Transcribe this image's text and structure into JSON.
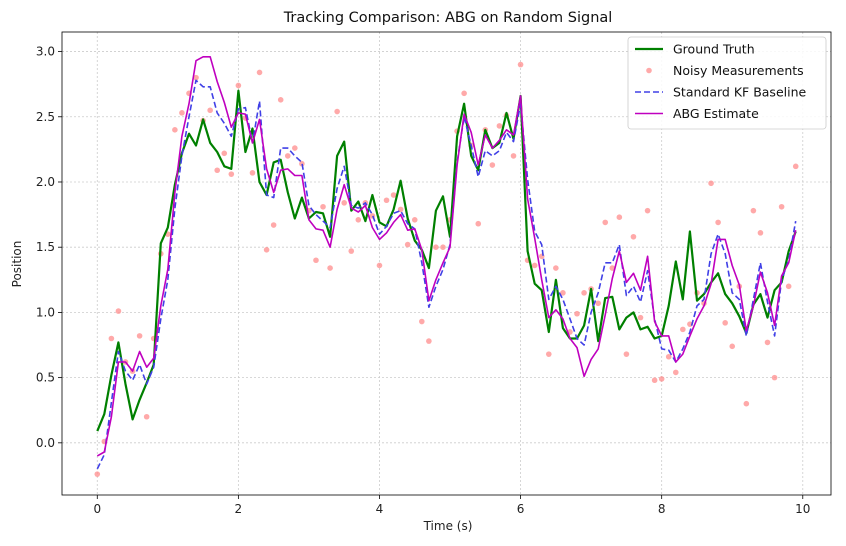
{
  "chart_data": {
    "type": "line",
    "title": "Tracking Comparison: ABG on Random Signal",
    "xlabel": "Time (s)",
    "ylabel": "Position",
    "xlim": [
      -0.5,
      10.4
    ],
    "ylim": [
      -0.4,
      3.15
    ],
    "xticks": [
      0,
      2,
      4,
      6,
      8,
      10
    ],
    "yticks": [
      0.0,
      0.5,
      1.0,
      1.5,
      2.0,
      2.5,
      3.0
    ],
    "xtick_labels": [
      "0",
      "2",
      "4",
      "6",
      "8",
      "10"
    ],
    "ytick_labels": [
      "0.0",
      "0.5",
      "1.0",
      "1.5",
      "2.0",
      "2.5",
      "3.0"
    ],
    "grid": true,
    "legend_position": "top-right",
    "series": [
      {
        "name": "Ground Truth",
        "kind": "line",
        "color": "#008000",
        "x": [
          0.0,
          0.1,
          0.2,
          0.3,
          0.4,
          0.5,
          0.6,
          0.7,
          0.8,
          0.9,
          1.0,
          1.1,
          1.2,
          1.3,
          1.4,
          1.5,
          1.6,
          1.7,
          1.8,
          1.9,
          2.0,
          2.1,
          2.2,
          2.3,
          2.4,
          2.5,
          2.6,
          2.7,
          2.8,
          2.9,
          3.0,
          3.1,
          3.2,
          3.3,
          3.4,
          3.5,
          3.6,
          3.7,
          3.8,
          3.9,
          4.0,
          4.1,
          4.2,
          4.3,
          4.4,
          4.5,
          4.6,
          4.7,
          4.8,
          4.9,
          5.0,
          5.1,
          5.2,
          5.3,
          5.4,
          5.5,
          5.6,
          5.7,
          5.8,
          5.9,
          6.0,
          6.1,
          6.2,
          6.3,
          6.4,
          6.5,
          6.6,
          6.7,
          6.8,
          6.9,
          7.0,
          7.1,
          7.2,
          7.3,
          7.4,
          7.5,
          7.6,
          7.7,
          7.8,
          7.9,
          8.0,
          8.1,
          8.2,
          8.3,
          8.4,
          8.5,
          8.6,
          8.7,
          8.8,
          8.9,
          9.0,
          9.1,
          9.2,
          9.3,
          9.4,
          9.5,
          9.6,
          9.7,
          9.8,
          9.9
        ],
        "y": [
          0.09,
          0.22,
          0.52,
          0.77,
          0.45,
          0.18,
          0.33,
          0.46,
          0.6,
          1.53,
          1.65,
          1.98,
          2.22,
          2.37,
          2.28,
          2.48,
          2.3,
          2.23,
          2.12,
          2.1,
          2.7,
          2.23,
          2.41,
          2.0,
          1.9,
          2.15,
          2.17,
          1.92,
          1.72,
          1.88,
          1.72,
          1.77,
          1.76,
          1.58,
          2.2,
          2.31,
          1.78,
          1.85,
          1.7,
          1.9,
          1.69,
          1.66,
          1.79,
          2.01,
          1.72,
          1.55,
          1.48,
          1.34,
          1.78,
          1.89,
          1.58,
          2.35,
          2.6,
          2.2,
          2.09,
          2.4,
          2.26,
          2.3,
          2.53,
          2.33,
          2.66,
          1.47,
          1.22,
          1.17,
          0.85,
          1.25,
          0.88,
          0.8,
          0.8,
          0.9,
          1.18,
          0.78,
          1.11,
          1.12,
          0.87,
          0.96,
          1.0,
          0.87,
          0.89,
          0.8,
          0.82,
          1.05,
          1.39,
          1.1,
          1.62,
          1.09,
          1.14,
          1.23,
          1.3,
          1.14,
          1.07,
          0.97,
          0.84,
          1.06,
          1.14,
          0.96,
          1.17,
          1.23,
          1.47,
          1.62
        ]
      },
      {
        "name": "Noisy Measurements",
        "kind": "scatter",
        "color": "#ff8c8c",
        "x": [
          0.0,
          0.1,
          0.2,
          0.3,
          0.4,
          0.5,
          0.6,
          0.7,
          0.8,
          0.9,
          1.0,
          1.1,
          1.2,
          1.3,
          1.4,
          1.5,
          1.6,
          1.7,
          1.8,
          1.9,
          2.0,
          2.1,
          2.2,
          2.3,
          2.4,
          2.5,
          2.6,
          2.7,
          2.8,
          2.9,
          3.0,
          3.1,
          3.2,
          3.3,
          3.4,
          3.5,
          3.6,
          3.7,
          3.8,
          3.9,
          4.0,
          4.1,
          4.2,
          4.3,
          4.4,
          4.5,
          4.6,
          4.7,
          4.8,
          4.9,
          5.0,
          5.1,
          5.2,
          5.3,
          5.4,
          5.5,
          5.6,
          5.7,
          5.8,
          5.9,
          6.0,
          6.1,
          6.2,
          6.3,
          6.4,
          6.5,
          6.6,
          6.7,
          6.8,
          6.9,
          7.0,
          7.1,
          7.2,
          7.3,
          7.4,
          7.5,
          7.6,
          7.7,
          7.8,
          7.9,
          8.0,
          8.1,
          8.2,
          8.3,
          8.4,
          8.5,
          8.6,
          8.7,
          8.8,
          8.9,
          9.0,
          9.1,
          9.2,
          9.3,
          9.4,
          9.5,
          9.6,
          9.7,
          9.8,
          9.9
        ],
        "y": [
          -0.24,
          0.01,
          0.8,
          1.01,
          0.62,
          0.55,
          0.82,
          0.2,
          0.8,
          1.45,
          1.6,
          2.4,
          2.53,
          2.68,
          2.8,
          2.47,
          2.55,
          2.09,
          2.22,
          2.06,
          2.74,
          2.49,
          2.07,
          2.84,
          1.48,
          1.67,
          2.63,
          2.2,
          2.26,
          2.14,
          1.78,
          1.4,
          1.81,
          1.34,
          2.54,
          1.84,
          1.47,
          1.71,
          1.84,
          1.74,
          1.36,
          1.86,
          1.9,
          1.79,
          1.52,
          1.71,
          0.93,
          0.78,
          1.5,
          1.5,
          1.71,
          2.39,
          2.68,
          2.28,
          1.68,
          2.4,
          2.13,
          2.43,
          2.51,
          2.2,
          2.9,
          1.4,
          1.36,
          1.43,
          0.68,
          1.34,
          1.15,
          0.85,
          0.99,
          1.15,
          1.18,
          1.07,
          1.69,
          1.34,
          1.73,
          0.68,
          1.58,
          0.96,
          1.78,
          0.48,
          0.49,
          0.66,
          0.54,
          0.87,
          0.91,
          1.15,
          1.07,
          1.99,
          1.69,
          0.92,
          0.74,
          1.2,
          0.3,
          1.78,
          1.61,
          0.77,
          0.5,
          1.81,
          1.2,
          2.12
        ]
      },
      {
        "name": "Standard KF Baseline",
        "kind": "line-dashed",
        "color": "#4040e6",
        "x": [
          0.0,
          0.1,
          0.2,
          0.3,
          0.4,
          0.5,
          0.6,
          0.7,
          0.8,
          0.9,
          1.0,
          1.1,
          1.2,
          1.3,
          1.4,
          1.5,
          1.6,
          1.7,
          1.8,
          1.9,
          2.0,
          2.1,
          2.2,
          2.3,
          2.4,
          2.5,
          2.6,
          2.7,
          2.8,
          2.9,
          3.0,
          3.1,
          3.2,
          3.3,
          3.4,
          3.5,
          3.6,
          3.7,
          3.8,
          3.9,
          4.0,
          4.1,
          4.2,
          4.3,
          4.4,
          4.5,
          4.6,
          4.7,
          4.8,
          4.9,
          5.0,
          5.1,
          5.2,
          5.3,
          5.4,
          5.5,
          5.6,
          5.7,
          5.8,
          5.9,
          6.0,
          6.1,
          6.2,
          6.3,
          6.4,
          6.5,
          6.6,
          6.7,
          6.8,
          6.9,
          7.0,
          7.1,
          7.2,
          7.3,
          7.4,
          7.5,
          7.6,
          7.7,
          7.8,
          7.9,
          8.0,
          8.1,
          8.2,
          8.3,
          8.4,
          8.5,
          8.6,
          8.7,
          8.8,
          8.9,
          9.0,
          9.1,
          9.2,
          9.3,
          9.4,
          9.5,
          9.6,
          9.7,
          9.8,
          9.9
        ],
        "y": [
          -0.2,
          -0.09,
          0.31,
          0.7,
          0.55,
          0.48,
          0.6,
          0.45,
          0.58,
          0.95,
          1.25,
          1.8,
          2.2,
          2.5,
          2.78,
          2.73,
          2.73,
          2.53,
          2.45,
          2.35,
          2.56,
          2.57,
          2.3,
          2.62,
          1.9,
          1.88,
          2.26,
          2.26,
          2.2,
          2.15,
          1.82,
          1.75,
          1.7,
          1.65,
          1.95,
          2.12,
          1.82,
          1.8,
          1.84,
          1.75,
          1.6,
          1.66,
          1.76,
          1.78,
          1.68,
          1.64,
          1.38,
          1.04,
          1.2,
          1.33,
          1.52,
          2.15,
          2.5,
          2.28,
          2.04,
          2.24,
          2.2,
          2.24,
          2.38,
          2.31,
          2.6,
          2.02,
          1.62,
          1.52,
          1.1,
          1.2,
          1.1,
          0.95,
          0.8,
          0.75,
          1.0,
          1.15,
          1.38,
          1.38,
          1.52,
          1.13,
          1.2,
          1.08,
          1.32,
          0.95,
          0.72,
          0.71,
          0.62,
          0.72,
          0.85,
          1.05,
          1.1,
          1.45,
          1.6,
          1.45,
          1.15,
          1.1,
          0.82,
          1.1,
          1.38,
          1.08,
          0.82,
          1.25,
          1.4,
          1.7
        ]
      },
      {
        "name": "ABG Estimate",
        "kind": "line",
        "color": "#bf00bf",
        "x": [
          0.0,
          0.1,
          0.2,
          0.3,
          0.4,
          0.5,
          0.6,
          0.7,
          0.8,
          0.9,
          1.0,
          1.1,
          1.2,
          1.3,
          1.4,
          1.5,
          1.6,
          1.7,
          1.8,
          1.9,
          2.0,
          2.1,
          2.2,
          2.3,
          2.4,
          2.5,
          2.6,
          2.7,
          2.8,
          2.9,
          3.0,
          3.1,
          3.2,
          3.3,
          3.4,
          3.5,
          3.6,
          3.7,
          3.8,
          3.9,
          4.0,
          4.1,
          4.2,
          4.3,
          4.4,
          4.5,
          4.6,
          4.7,
          4.8,
          4.9,
          5.0,
          5.1,
          5.2,
          5.3,
          5.4,
          5.5,
          5.6,
          5.7,
          5.8,
          5.9,
          6.0,
          6.1,
          6.2,
          6.3,
          6.4,
          6.5,
          6.6,
          6.7,
          6.8,
          6.9,
          7.0,
          7.1,
          7.2,
          7.3,
          7.4,
          7.5,
          7.6,
          7.7,
          7.8,
          7.9,
          8.0,
          8.1,
          8.2,
          8.3,
          8.4,
          8.5,
          8.6,
          8.7,
          8.8,
          8.9,
          9.0,
          9.1,
          9.2,
          9.3,
          9.4,
          9.5,
          9.6,
          9.7,
          9.8,
          9.9
        ],
        "y": [
          -0.1,
          -0.07,
          0.2,
          0.62,
          0.62,
          0.55,
          0.7,
          0.58,
          0.65,
          1.05,
          1.33,
          1.92,
          2.35,
          2.6,
          2.93,
          2.96,
          2.96,
          2.77,
          2.61,
          2.42,
          2.53,
          2.52,
          2.3,
          2.48,
          2.1,
          1.92,
          2.09,
          2.1,
          2.05,
          2.05,
          1.71,
          1.64,
          1.63,
          1.5,
          1.79,
          1.98,
          1.8,
          1.77,
          1.82,
          1.65,
          1.56,
          1.61,
          1.69,
          1.75,
          1.63,
          1.64,
          1.48,
          1.09,
          1.25,
          1.38,
          1.5,
          2.13,
          2.52,
          2.38,
          2.13,
          2.36,
          2.26,
          2.32,
          2.4,
          2.36,
          2.66,
          1.87,
          1.57,
          1.25,
          0.96,
          1.02,
          0.95,
          0.8,
          0.73,
          0.51,
          0.64,
          0.72,
          0.98,
          1.26,
          1.47,
          1.23,
          1.3,
          1.17,
          1.43,
          0.93,
          0.82,
          0.82,
          0.62,
          0.68,
          0.82,
          0.95,
          1.05,
          1.22,
          1.56,
          1.56,
          1.36,
          1.21,
          0.86,
          1.05,
          1.31,
          1.15,
          0.9,
          1.28,
          1.38,
          1.63
        ]
      }
    ]
  }
}
